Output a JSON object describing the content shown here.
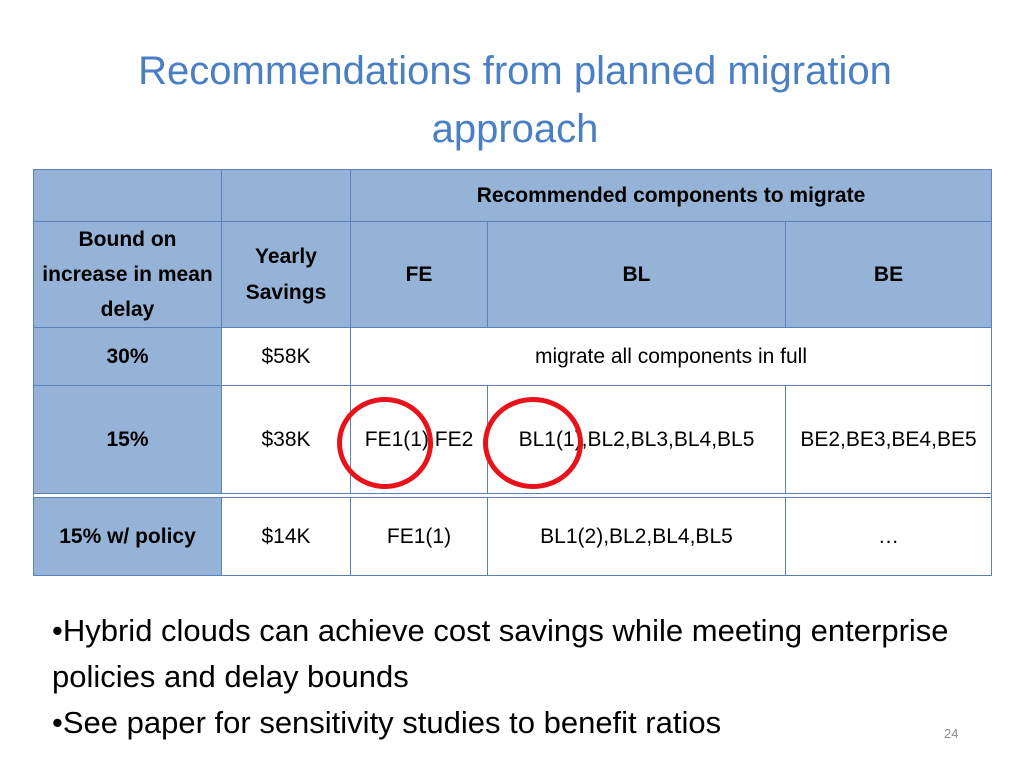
{
  "slide": {
    "title_line1": "Recommendations from planned migration",
    "title_line2": "approach",
    "page_number": "24"
  },
  "table": {
    "group_header": "Recommended components to migrate",
    "columns": {
      "bound": "Bound on increase in mean delay",
      "savings": "Yearly Savings",
      "fe": "FE",
      "bl": "BL",
      "be": "BE"
    },
    "rows": [
      {
        "bound": "30%",
        "savings": "$58K",
        "merged": "migrate all components in full"
      },
      {
        "bound": "15%",
        "savings": "$38K",
        "fe": "FE1(1),FE2",
        "bl": "BL1(1),BL2,BL3,BL4,BL5",
        "be": "BE2,BE3,BE4,BE5"
      },
      {
        "bound": "15% w/ policy",
        "savings": "$14K",
        "fe": "FE1(1)",
        "bl": "BL1(2),BL2,BL4,BL5",
        "be": "…"
      }
    ]
  },
  "bullets": [
    "•Hybrid clouds can achieve cost savings while meeting enterprise policies and delay bounds",
    "•See paper for sensitivity studies to benefit ratios"
  ],
  "colors": {
    "title": "#4a7fc4",
    "header_fill": "#95b3d7",
    "border": "#5b82b8",
    "highlight_circle": "#e8121b"
  }
}
